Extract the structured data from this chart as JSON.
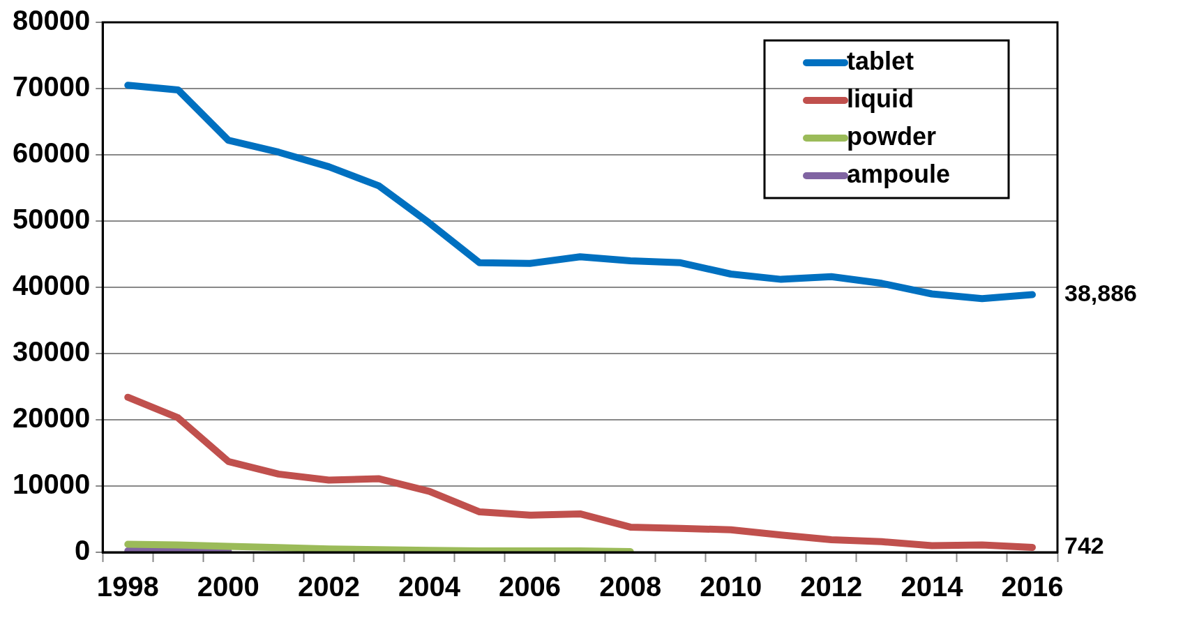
{
  "chart_data": {
    "type": "line",
    "categories": [
      "1998",
      null,
      "2000",
      null,
      "2002",
      null,
      "2004",
      null,
      "2006",
      null,
      "2008",
      null,
      "2010",
      null,
      "2012",
      null,
      "2014",
      null,
      "2016"
    ],
    "series": [
      {
        "name": "tablet",
        "color": "#0070c0",
        "values": [
          70500,
          69800,
          62200,
          60400,
          58200,
          55300,
          49700,
          43700,
          43600,
          44600,
          44000,
          43700,
          42000,
          41200,
          41600,
          40600,
          39000,
          38300,
          38886
        ],
        "value_labels": [
          null,
          null,
          null,
          null,
          null,
          null,
          null,
          null,
          null,
          null,
          null,
          null,
          null,
          null,
          null,
          null,
          null,
          null,
          "38,886"
        ]
      },
      {
        "name": "liquid",
        "color": "#c0504d",
        "values": [
          23400,
          20300,
          13700,
          11800,
          10900,
          11100,
          9200,
          6100,
          5600,
          5800,
          3800,
          3600,
          3400,
          2600,
          1900,
          1600,
          1000,
          1100,
          742
        ],
        "value_labels": [
          null,
          null,
          null,
          null,
          null,
          null,
          null,
          null,
          null,
          null,
          null,
          null,
          null,
          null,
          null,
          null,
          null,
          null,
          "742"
        ]
      },
      {
        "name": "powder",
        "color": "#9bbb59",
        "values": [
          1200,
          1100,
          900,
          700,
          500,
          400,
          300,
          200,
          200,
          200,
          100,
          null,
          null,
          null,
          null,
          null,
          null,
          null,
          null
        ]
      },
      {
        "name": "ampoule",
        "color": "#8064a2",
        "values": [
          200,
          200,
          200,
          null,
          null,
          null,
          null,
          null,
          null,
          null,
          null,
          null,
          null,
          null,
          null,
          null,
          null,
          null,
          null
        ]
      }
    ],
    "ylim": [
      0,
      80000
    ],
    "yticks": [
      0,
      10000,
      20000,
      30000,
      40000,
      50000,
      60000,
      70000,
      80000
    ],
    "grid": "y",
    "legend": "top right",
    "marker": "none",
    "line_style": "solid"
  }
}
